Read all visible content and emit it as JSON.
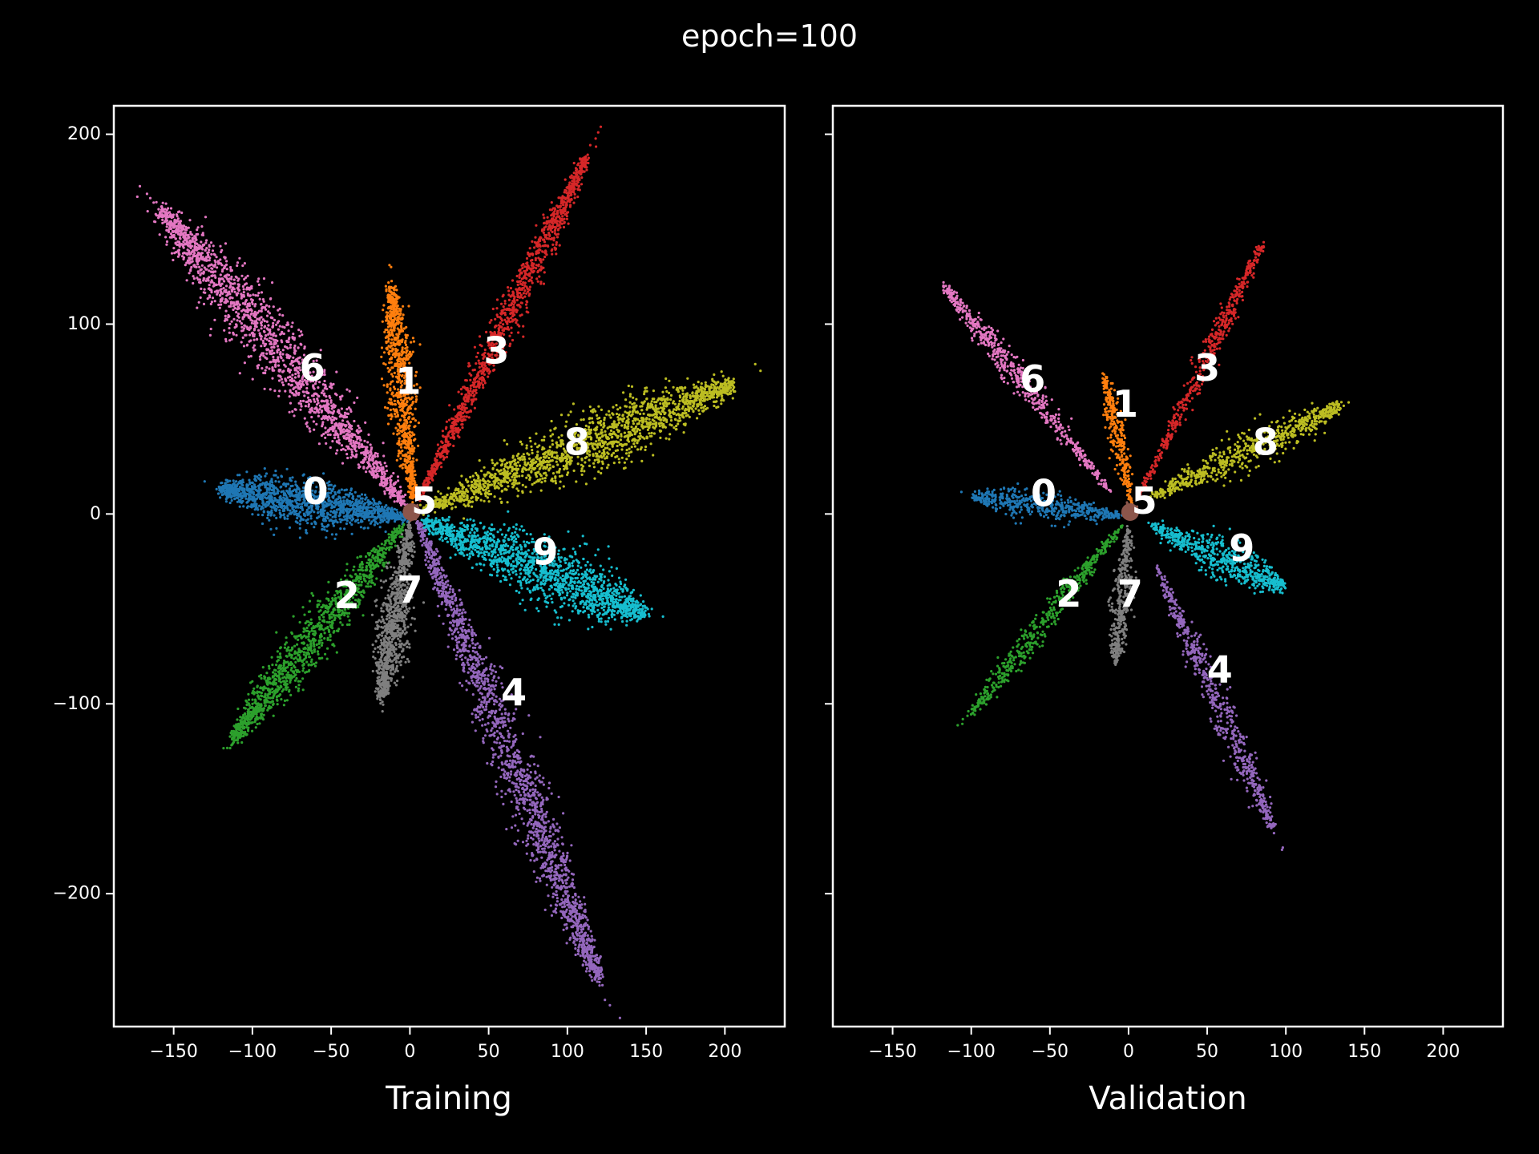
{
  "figure": {
    "title": "epoch=100",
    "background": "#000000",
    "foreground": "#ffffff"
  },
  "class_colors": {
    "0": "#1f77b4",
    "1": "#ff7f0e",
    "2": "#2ca02c",
    "3": "#d62728",
    "4": "#9467bd",
    "5": "#8c564b",
    "6": "#e377c2",
    "7": "#7f7f7f",
    "8": "#bcbd22",
    "9": "#17becf"
  },
  "chart_data": [
    {
      "type": "scatter",
      "title": "",
      "xlabel": "Training",
      "ylabel": "",
      "xlim": [
        -188,
        238
      ],
      "ylim": [
        -270,
        215
      ],
      "xticks": [
        -150,
        -100,
        -50,
        0,
        50,
        100,
        150,
        200
      ],
      "xtick_labels": [
        "−150",
        "−100",
        "−50",
        "0",
        "50",
        "100",
        "150",
        "200"
      ],
      "yticks": [
        -200,
        -100,
        0,
        100,
        200
      ],
      "ytick_labels": [
        "−200",
        "−100",
        "0",
        "100",
        "200"
      ],
      "grid": false,
      "legend": "none",
      "clusters": [
        {
          "label": "0",
          "label_x": -60,
          "label_y": 12,
          "start_x": -2,
          "start_y": -2,
          "end_x": -120,
          "end_y": 13,
          "width": 11,
          "points": 1400
        },
        {
          "label": "1",
          "label_x": -1,
          "label_y": 70,
          "start_x": 2,
          "start_y": 8,
          "end_x": -12,
          "end_y": 120,
          "width": 8,
          "points": 900
        },
        {
          "label": "2",
          "label_x": -40,
          "label_y": -43,
          "start_x": -4,
          "start_y": -6,
          "end_x": -112,
          "end_y": -118,
          "width": 10,
          "points": 1200
        },
        {
          "label": "3",
          "label_x": 55,
          "label_y": 86,
          "start_x": 6,
          "start_y": 8,
          "end_x": 112,
          "end_y": 188,
          "width": 7,
          "points": 1200
        },
        {
          "label": "4",
          "label_x": 66,
          "label_y": -94,
          "start_x": 5,
          "start_y": -4,
          "end_x": 120,
          "end_y": -245,
          "width": 11,
          "points": 1700
        },
        {
          "label": "5",
          "label_x": 9,
          "label_y": 7,
          "start_x": 0,
          "start_y": 0,
          "end_x": 3,
          "end_y": 2,
          "width": 4,
          "points": 150
        },
        {
          "label": "6",
          "label_x": -62,
          "label_y": 77,
          "start_x": -3,
          "start_y": 5,
          "end_x": -158,
          "end_y": 160,
          "width": 14,
          "points": 1800
        },
        {
          "label": "7",
          "label_x": 0,
          "label_y": -40,
          "start_x": 0,
          "start_y": -6,
          "end_x": -18,
          "end_y": -97,
          "width": 9,
          "points": 900
        },
        {
          "label": "8",
          "label_x": 106,
          "label_y": 38,
          "start_x": 8,
          "start_y": 2,
          "end_x": 205,
          "end_y": 68,
          "width": 13,
          "points": 1700
        },
        {
          "label": "9",
          "label_x": 86,
          "label_y": -20,
          "start_x": 8,
          "start_y": -4,
          "end_x": 148,
          "end_y": -52,
          "width": 15,
          "points": 1500
        }
      ]
    },
    {
      "type": "scatter",
      "title": "",
      "xlabel": "Validation",
      "ylabel": "",
      "xlim": [
        -188,
        238
      ],
      "ylim": [
        -270,
        215
      ],
      "xticks": [
        -150,
        -100,
        -50,
        0,
        50,
        100,
        150,
        200
      ],
      "xtick_labels": [
        "−150",
        "−100",
        "−50",
        "0",
        "50",
        "100",
        "150",
        "200"
      ],
      "yticks": [
        -200,
        -100,
        0,
        100,
        200
      ],
      "ytick_labels": [],
      "grid": false,
      "legend": "none",
      "clusters": [
        {
          "label": "0",
          "label_x": -54,
          "label_y": 11,
          "start_x": -3,
          "start_y": -1,
          "end_x": -98,
          "end_y": 9,
          "width": 7,
          "points": 500
        },
        {
          "label": "1",
          "label_x": -2,
          "label_y": 58,
          "start_x": 2,
          "start_y": 6,
          "end_x": -15,
          "end_y": 72,
          "width": 5,
          "points": 300
        },
        {
          "label": "2",
          "label_x": -38,
          "label_y": -42,
          "start_x": -4,
          "start_y": -6,
          "end_x": -100,
          "end_y": -105,
          "width": 6,
          "points": 500
        },
        {
          "label": "3",
          "label_x": 50,
          "label_y": 77,
          "start_x": 6,
          "start_y": 8,
          "end_x": 85,
          "end_y": 142,
          "width": 5,
          "points": 500
        },
        {
          "label": "4",
          "label_x": 58,
          "label_y": -82,
          "start_x": 18,
          "start_y": -28,
          "end_x": 92,
          "end_y": -165,
          "width": 7,
          "points": 600
        },
        {
          "label": "5",
          "label_x": 10,
          "label_y": 7,
          "start_x": 0,
          "start_y": 0,
          "end_x": 3,
          "end_y": 2,
          "width": 4,
          "points": 80
        },
        {
          "label": "6",
          "label_x": -61,
          "label_y": 71,
          "start_x": -12,
          "start_y": 12,
          "end_x": -117,
          "end_y": 120,
          "width": 6,
          "points": 600
        },
        {
          "label": "7",
          "label_x": 1,
          "label_y": -42,
          "start_x": 0,
          "start_y": -8,
          "end_x": -8,
          "end_y": -78,
          "width": 6,
          "points": 400
        },
        {
          "label": "8",
          "label_x": 87,
          "label_y": 38,
          "start_x": 12,
          "start_y": 8,
          "end_x": 135,
          "end_y": 57,
          "width": 8,
          "points": 700
        },
        {
          "label": "9",
          "label_x": 72,
          "label_y": -18,
          "start_x": 14,
          "start_y": -6,
          "end_x": 98,
          "end_y": -38,
          "width": 9,
          "points": 600
        }
      ]
    }
  ]
}
